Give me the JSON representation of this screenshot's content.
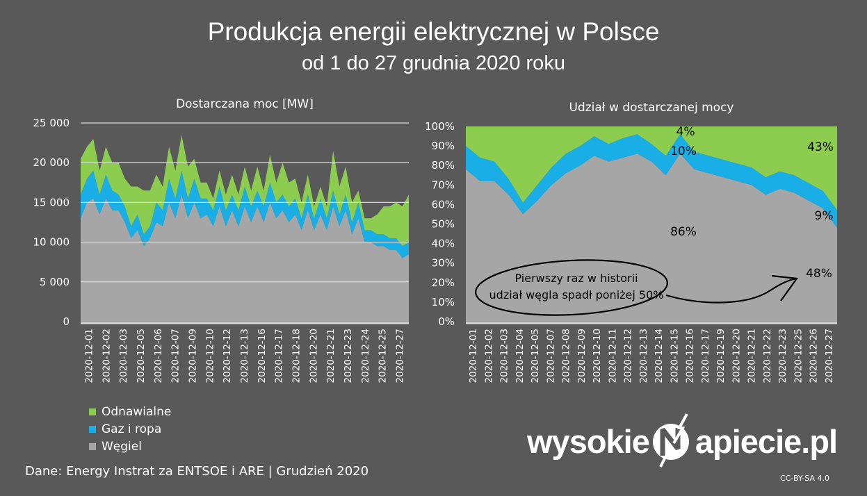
{
  "title": "Produkcja energii elektrycznej w Polsce",
  "subtitle": "od 1 do 27 grudnia 2020 roku",
  "source": "Dane: Energy Instrat za ENTSOE i ARE   |  Grudzień 2020",
  "logo": {
    "left": "wysokie",
    "right": "apiecie.pl"
  },
  "license": "CC-BY-SA 4.0",
  "colors": {
    "renewables": "#8ccc4e",
    "gas": "#1aaee6",
    "coal": "#a6a6a6",
    "background": "#595959"
  },
  "legend": [
    {
      "label": "Odnawialne",
      "color": "#8ccc4e"
    },
    {
      "label": "Gaz i ropa",
      "color": "#1aaee6"
    },
    {
      "label": "Węgiel",
      "color": "#a6a6a6"
    }
  ],
  "chart_data": [
    {
      "type": "area",
      "stacked": true,
      "title": "Dostarczana moc [MW]",
      "ylim": [
        0,
        25000
      ],
      "yticks": [
        0,
        5000,
        10000,
        15000,
        20000,
        25000
      ],
      "ytick_labels": [
        "0",
        "5 000",
        "10 000",
        "15 000",
        "20 000",
        "25 000"
      ],
      "grid": true,
      "categories": [
        "2020-12-01",
        "2020-12-02",
        "2020-12-03",
        "2020-12-05",
        "2020-12-06",
        "2020-12-07",
        "2020-12-09",
        "2020-12-10",
        "2020-12-12",
        "2020-12-13",
        "2020-12-16",
        "2020-12-17",
        "2020-12-18",
        "2020-12-20",
        "2020-12-21",
        "2020-12-23",
        "2020-12-24",
        "2020-12-25",
        "2020-12-27"
      ],
      "x_days": [
        1,
        27
      ],
      "series": [
        {
          "name": "Węgiel",
          "color": "#a6a6a6",
          "x": [
            1,
            1.5,
            2,
            2.5,
            3,
            3.5,
            4,
            4.5,
            5,
            5.5,
            6,
            6.5,
            7,
            7.5,
            8,
            8.5,
            9,
            9.5,
            10,
            10.5,
            11,
            11.5,
            12,
            12.5,
            13,
            13.5,
            14,
            14.5,
            15,
            15.5,
            16,
            16.5,
            17,
            17.5,
            18,
            18.5,
            19,
            19.5,
            20,
            20.5,
            21,
            21.5,
            22,
            22.5,
            23,
            23.5,
            24,
            24.5,
            25,
            25.5,
            26,
            26.5,
            27
          ],
          "values": [
            13000,
            15000,
            15500,
            13500,
            15500,
            14000,
            14000,
            12500,
            10500,
            11500,
            9500,
            10500,
            12500,
            12000,
            15000,
            13000,
            16000,
            13000,
            15000,
            13000,
            13500,
            12000,
            14500,
            12000,
            14000,
            12000,
            14500,
            12500,
            14500,
            12500,
            15000,
            13000,
            14000,
            12500,
            13500,
            11500,
            14000,
            11500,
            13500,
            11500,
            14500,
            12000,
            14000,
            11000,
            13000,
            10000,
            10000,
            9500,
            9500,
            9000,
            9000,
            8000,
            8500
          ]
        },
        {
          "name": "Gaz i ropa",
          "color": "#1aaee6",
          "x": [
            1,
            1.5,
            2,
            2.5,
            3,
            3.5,
            4,
            4.5,
            5,
            5.5,
            6,
            6.5,
            7,
            7.5,
            8,
            8.5,
            9,
            9.5,
            10,
            10.5,
            11,
            11.5,
            12,
            12.5,
            13,
            13.5,
            14,
            14.5,
            15,
            15.5,
            16,
            16.5,
            17,
            17.5,
            18,
            18.5,
            19,
            19.5,
            20,
            20.5,
            21,
            21.5,
            22,
            22.5,
            23,
            23.5,
            24,
            24.5,
            25,
            25.5,
            26,
            26.5,
            27
          ],
          "values": [
            3000,
            3000,
            3500,
            2500,
            3000,
            2500,
            2000,
            2000,
            1500,
            2000,
            1500,
            1500,
            2500,
            2000,
            3000,
            2500,
            3000,
            2500,
            3000,
            2500,
            2000,
            2000,
            2500,
            2000,
            2000,
            2000,
            2500,
            2000,
            2000,
            2000,
            2500,
            2000,
            2000,
            2000,
            2000,
            1500,
            2000,
            1500,
            2000,
            1500,
            2000,
            1500,
            2000,
            1500,
            2000,
            1500,
            1500,
            1500,
            1500,
            1500,
            1500,
            1500,
            1500
          ]
        },
        {
          "name": "Odnawialne",
          "color": "#8ccc4e",
          "x": [
            1,
            1.5,
            2,
            2.5,
            3,
            3.5,
            4,
            4.5,
            5,
            5.5,
            6,
            6.5,
            7,
            7.5,
            8,
            8.5,
            9,
            9.5,
            10,
            10.5,
            11,
            11.5,
            12,
            12.5,
            13,
            13.5,
            14,
            14.5,
            15,
            15.5,
            16,
            16.5,
            17,
            17.5,
            18,
            18.5,
            19,
            19.5,
            20,
            20.5,
            21,
            21.5,
            22,
            22.5,
            23,
            23.5,
            24,
            24.5,
            25,
            25.5,
            26,
            26.5,
            27
          ],
          "values": [
            4500,
            4000,
            4000,
            3000,
            3500,
            3500,
            4000,
            3500,
            5000,
            3500,
            5500,
            4500,
            3500,
            3000,
            4000,
            3500,
            4500,
            4000,
            2500,
            2000,
            2000,
            1500,
            2000,
            2000,
            2500,
            2000,
            2500,
            2000,
            3000,
            2000,
            3500,
            2500,
            4000,
            3000,
            2500,
            2000,
            2500,
            1500,
            1500,
            1500,
            5000,
            3500,
            3500,
            2500,
            1500,
            1500,
            1500,
            2500,
            3500,
            4000,
            4500,
            5000,
            6000
          ]
        }
      ]
    },
    {
      "type": "area",
      "stacked": true,
      "percent": true,
      "title": "Udział w dostarczanej mocy",
      "ylim": [
        0,
        100
      ],
      "yticks": [
        0,
        10,
        20,
        30,
        40,
        50,
        60,
        70,
        80,
        90,
        100
      ],
      "ytick_labels": [
        "0%",
        "10%",
        "20%",
        "30%",
        "40%",
        "50%",
        "60%",
        "70%",
        "80%",
        "90%",
        "100%"
      ],
      "categories": [
        "2020-12-01",
        "2020-12-02",
        "2020-12-03",
        "2020-12-04",
        "2020-12-05",
        "2020-12-07",
        "2020-12-08",
        "2020-12-09",
        "2020-12-10",
        "2020-12-11",
        "2020-12-12",
        "2020-12-13",
        "2020-12-14",
        "2020-12-15",
        "2020-12-16",
        "2020-12-17",
        "2020-12-19",
        "2020-12-20",
        "2020-12-21",
        "2020-12-22",
        "2020-12-23",
        "2020-12-25",
        "2020-12-26",
        "2020-12-27"
      ],
      "x_days": [
        1,
        27
      ],
      "series": [
        {
          "name": "Węgiel",
          "color": "#a6a6a6",
          "x": [
            1,
            2,
            3,
            4,
            5,
            6,
            7,
            8,
            9,
            10,
            11,
            12,
            13,
            14,
            15,
            16,
            17,
            18,
            19,
            20,
            21,
            22,
            23,
            24,
            25,
            26,
            27
          ],
          "values": [
            78,
            72,
            72,
            65,
            55,
            62,
            70,
            76,
            80,
            85,
            82,
            84,
            86,
            82,
            75,
            86,
            78,
            76,
            74,
            72,
            70,
            65,
            68,
            66,
            62,
            58,
            48
          ]
        },
        {
          "name": "Gaz i ropa",
          "color": "#1aaee6",
          "x": [
            1,
            2,
            3,
            4,
            5,
            6,
            7,
            8,
            9,
            10,
            11,
            12,
            13,
            14,
            15,
            16,
            17,
            18,
            19,
            20,
            21,
            22,
            23,
            24,
            25,
            26,
            27
          ],
          "values": [
            12,
            12,
            10,
            8,
            6,
            8,
            9,
            10,
            10,
            10,
            9,
            10,
            10,
            9,
            10,
            10,
            9,
            9,
            9,
            9,
            9,
            9,
            9,
            9,
            9,
            9,
            9
          ]
        },
        {
          "name": "Odnawialne",
          "color": "#8ccc4e",
          "x": [
            1,
            2,
            3,
            4,
            5,
            6,
            7,
            8,
            9,
            10,
            11,
            12,
            13,
            14,
            15,
            16,
            17,
            18,
            19,
            20,
            21,
            22,
            23,
            24,
            25,
            26,
            27
          ],
          "values": [
            10,
            16,
            18,
            27,
            39,
            30,
            21,
            14,
            10,
            5,
            9,
            6,
            4,
            9,
            15,
            4,
            13,
            15,
            17,
            19,
            21,
            26,
            23,
            25,
            29,
            33,
            43
          ]
        }
      ],
      "annotations": [
        {
          "text": "4%"
        },
        {
          "text": "10%"
        },
        {
          "text": "86%"
        },
        {
          "text": "43%"
        },
        {
          "text": "9%"
        },
        {
          "text": "48%"
        },
        {
          "text_lines": [
            "Pierwszy raz w historii",
            "udział węgla spadł poniżej 50%"
          ]
        }
      ]
    }
  ]
}
